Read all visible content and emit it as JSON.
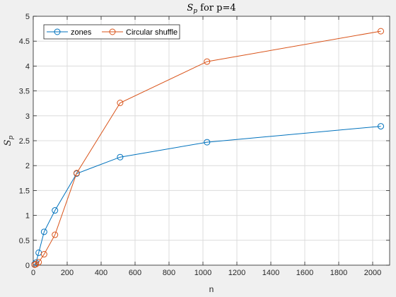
{
  "chart_data": {
    "type": "line",
    "title": "S_p for p=4",
    "xlabel": "n",
    "ylabel": "S_p",
    "xlim": [
      0,
      2100
    ],
    "ylim": [
      0,
      5
    ],
    "xticks": [
      0,
      200,
      400,
      600,
      800,
      1000,
      1200,
      1400,
      1600,
      1800,
      2000
    ],
    "yticks": [
      0,
      0.5,
      1,
      1.5,
      2,
      2.5,
      3,
      3.5,
      4,
      4.5,
      5
    ],
    "grid": true,
    "legend_position": "top-left",
    "x": [
      8,
      16,
      32,
      64,
      128,
      256,
      512,
      1024,
      2048
    ],
    "series": [
      {
        "name": "zones",
        "color": "#0072BD",
        "values": [
          0.02,
          0.05,
          0.25,
          0.67,
          1.1,
          1.84,
          2.17,
          2.47,
          2.79
        ]
      },
      {
        "name": "Circular shuffle",
        "color": "#D95319",
        "values": [
          0.01,
          0.02,
          0.06,
          0.22,
          0.61,
          1.85,
          3.26,
          4.09,
          4.7
        ]
      }
    ]
  }
}
